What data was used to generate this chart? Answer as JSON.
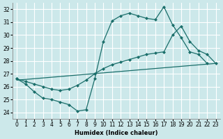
{
  "xlabel": "Humidex (Indice chaleur)",
  "bg_color": "#cce8ea",
  "grid_color": "#ffffff",
  "line_color": "#1a6e6a",
  "xlim": [
    -0.5,
    23.5
  ],
  "ylim": [
    23.5,
    32.5
  ],
  "xticks": [
    0,
    1,
    2,
    3,
    4,
    5,
    6,
    7,
    8,
    9,
    10,
    11,
    12,
    13,
    14,
    15,
    16,
    17,
    18,
    19,
    20,
    21,
    22,
    23
  ],
  "yticks": [
    24,
    25,
    26,
    27,
    28,
    29,
    30,
    31,
    32
  ],
  "line1_x": [
    0,
    1,
    2,
    3,
    4,
    5,
    6,
    7,
    8,
    9,
    10,
    11,
    12,
    13,
    14,
    15,
    16,
    17,
    18,
    19,
    20,
    21,
    22
  ],
  "line1_y": [
    26.6,
    26.2,
    25.6,
    25.1,
    25.0,
    24.8,
    24.6,
    24.1,
    24.2,
    26.6,
    29.5,
    31.1,
    31.5,
    31.7,
    31.5,
    31.3,
    31.2,
    32.2,
    30.8,
    29.8,
    28.7,
    28.5,
    27.8
  ],
  "line2_x": [
    0,
    1,
    2,
    3,
    4,
    5,
    6,
    7,
    8,
    9,
    10,
    11,
    12,
    13,
    14,
    15,
    16,
    17,
    18,
    19,
    20,
    21,
    22,
    23
  ],
  "line2_y": [
    26.6,
    26.4,
    26.2,
    26.0,
    25.8,
    25.7,
    25.8,
    26.1,
    26.5,
    27.0,
    27.4,
    27.7,
    27.9,
    28.1,
    28.3,
    28.5,
    28.6,
    28.7,
    30.0,
    30.7,
    29.5,
    28.8,
    28.5,
    27.8
  ],
  "line3_x": [
    0,
    23
  ],
  "line3_y": [
    26.5,
    27.8
  ],
  "markersize": 2.5
}
